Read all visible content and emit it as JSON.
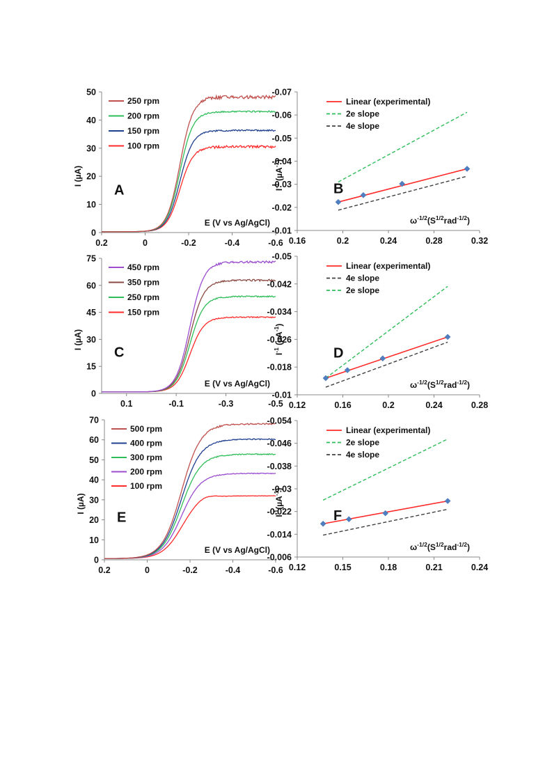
{
  "chart_data": [
    {
      "id": "A",
      "type": "line",
      "panel_label": "A",
      "xlabel": "E (V vs Ag/AgCl)",
      "ylabel": "I (µA)",
      "xlim": [
        0.2,
        -0.6
      ],
      "ylim": [
        0,
        50
      ],
      "x_ticks": [
        "0.2",
        "0",
        "-0.2",
        "-0.4",
        "-0.6"
      ],
      "y_ticks": [
        "0",
        "10",
        "20",
        "30",
        "40",
        "50"
      ],
      "legend_position": "top-left",
      "series": [
        {
          "name": "250 rpm",
          "color": "#c0504d",
          "limiting_current": 48.2,
          "noise": 0.6
        },
        {
          "name": "200 rpm",
          "color": "#2ebd59",
          "limiting_current": 43.0,
          "noise": 0.25
        },
        {
          "name": "150 rpm",
          "color": "#1f3f8f",
          "limiting_current": 36.3,
          "noise": 0.25
        },
        {
          "name": "100 rpm",
          "color": "#ff2a2a",
          "limiting_current": 30.5,
          "noise": 0.45
        }
      ],
      "curve": {
        "start_current": 0.3,
        "midpoint_V": -0.16,
        "width_V": 0.03
      }
    },
    {
      "id": "B",
      "type": "scatter",
      "panel_label": "B",
      "xlabel_main": "ω",
      "xlabel_sup1": "-1/2",
      "xlabel_mid": "(S",
      "xlabel_sup2": "1/2",
      "xlabel_mid2": "rad",
      "xlabel_sup3": "-1/2",
      "xlabel_end": ")",
      "ylabel_main": "I",
      "ylabel_sup1": "-1",
      "ylabel_mid": " (µA",
      "ylabel_sup2": "-1",
      "ylabel_end": ")",
      "xlim": [
        0.16,
        0.32
      ],
      "ylim": [
        -0.01,
        -0.07
      ],
      "x_ticks": [
        "0.16",
        "0.2",
        "0.24",
        "0.28",
        "0.32"
      ],
      "y_ticks": [
        "-0.01",
        "-0.02",
        "-0.03",
        "-0.04",
        "-0.05",
        "-0.06",
        "-0.07"
      ],
      "legend_position": "top-left",
      "points": {
        "x": [
          0.196,
          0.218,
          0.252,
          0.309
        ],
        "y": [
          -0.0223,
          -0.0253,
          -0.0302,
          -0.0367
        ]
      },
      "lines": [
        {
          "name": "Linear (experimental)",
          "color": "#ff2a2a",
          "dash": "solid",
          "x": [
            0.196,
            0.309
          ],
          "y": [
            -0.0223,
            -0.0367
          ]
        },
        {
          "name": "2e slope",
          "color": "#2ebd59",
          "dash": "dashed",
          "x": [
            0.196,
            0.309
          ],
          "y": [
            -0.031,
            -0.0612
          ]
        },
        {
          "name": "4e slope",
          "color": "#404040",
          "dash": "dashed",
          "x": [
            0.196,
            0.309
          ],
          "y": [
            -0.0188,
            -0.0335
          ]
        }
      ]
    },
    {
      "id": "C",
      "type": "line",
      "panel_label": "C",
      "xlabel": "E (V vs Ag/AgCl)",
      "ylabel": "I (µA)",
      "xlim": [
        0.2,
        -0.5
      ],
      "ylim": [
        0,
        75
      ],
      "x_ticks": [
        "0.1",
        "-0.1",
        "-0.3",
        "-0.5"
      ],
      "x_tick_values": [
        0.1,
        -0.1,
        -0.3,
        -0.5
      ],
      "y_ticks": [
        "0",
        "15",
        "30",
        "45",
        "60",
        "75"
      ],
      "legend_position": "top-left",
      "series": [
        {
          "name": "450 rpm",
          "color": "#9b4dd0",
          "limiting_current": 73.0,
          "noise": 0.6
        },
        {
          "name": "350 rpm",
          "color": "#8b4a44",
          "limiting_current": 62.8,
          "noise": 0.5
        },
        {
          "name": "250 rpm",
          "color": "#2ebd59",
          "limiting_current": 53.8,
          "noise": 0.35
        },
        {
          "name": "150 rpm",
          "color": "#ff2a2a",
          "limiting_current": 42.3,
          "noise": 0.3
        }
      ],
      "curve": {
        "start_current": 0.8,
        "midpoint_V": -0.155,
        "width_V": 0.028
      }
    },
    {
      "id": "D",
      "type": "scatter",
      "panel_label": "D",
      "xlabel_main": "ω",
      "xlabel_sup1": "-1/2",
      "xlabel_mid": "(S",
      "xlabel_sup2": "1/2",
      "xlabel_mid2": "rad",
      "xlabel_sup3": "-1/2",
      "xlabel_end": ")",
      "ylabel_main": "I",
      "ylabel_sup1": "-1",
      "ylabel_mid": " (µA",
      "ylabel_sup2": "-1",
      "ylabel_end": ")",
      "xlim": [
        0.12,
        0.28
      ],
      "ylim": [
        -0.01,
        -0.05
      ],
      "x_ticks": [
        "0.12",
        "0.16",
        "0.2",
        "0.24",
        "0.28"
      ],
      "y_ticks": [
        "-0.01",
        "-0.018",
        "-0.026",
        "-0.034",
        "-0.042",
        "-0.05"
      ],
      "legend_position": "top-left",
      "points": {
        "x": [
          0.145,
          0.164,
          0.195,
          0.252
        ],
        "y": [
          -0.0148,
          -0.0171,
          -0.0205,
          -0.0267
        ]
      },
      "lines": [
        {
          "name": "Linear (experimental)",
          "color": "#ff2a2a",
          "dash": "solid",
          "x": [
            0.145,
            0.252
          ],
          "y": [
            -0.0148,
            -0.0267
          ]
        },
        {
          "name": "4e slope",
          "color": "#404040",
          "dash": "dashed",
          "x": [
            0.145,
            0.252
          ],
          "y": [
            -0.0122,
            -0.0252
          ]
        },
        {
          "name": "2e slope",
          "color": "#2ebd59",
          "dash": "dashed",
          "x": [
            0.145,
            0.252
          ],
          "y": [
            -0.0148,
            -0.0413
          ]
        }
      ]
    },
    {
      "id": "E",
      "type": "line",
      "panel_label": "E",
      "xlabel": "E (V vs Ag/AgCl)",
      "ylabel": "I (µA)",
      "xlim": [
        0.2,
        -0.6
      ],
      "ylim": [
        0,
        70
      ],
      "x_ticks": [
        "0.2",
        "0",
        "-0.2",
        "-0.4",
        "-0.6"
      ],
      "y_ticks": [
        "0",
        "10",
        "20",
        "30",
        "40",
        "50",
        "60",
        "70"
      ],
      "legend_position": "top-left",
      "series": [
        {
          "name": "500 rpm",
          "color": "#c0504d",
          "limiting_current": 68.0,
          "noise": 0.35
        },
        {
          "name": "400 rpm",
          "color": "#1f3f8f",
          "limiting_current": 60.3,
          "noise": 0.25
        },
        {
          "name": "300 rpm",
          "color": "#2ebd59",
          "limiting_current": 52.8,
          "noise": 0.25
        },
        {
          "name": "200 rpm",
          "color": "#9b4dd0",
          "limiting_current": 43.2,
          "noise": 0.2
        },
        {
          "name": "100 rpm",
          "color": "#ff2a2a",
          "limiting_current": 32.0,
          "noise": 0.1,
          "peak": 33.5
        }
      ],
      "curve": {
        "start_current": 0.6,
        "midpoint_V": -0.16,
        "width_V": 0.045
      }
    },
    {
      "id": "F",
      "type": "scatter",
      "panel_label": "F",
      "xlabel_main": "ω",
      "xlabel_sup1": "-1/2",
      "xlabel_mid": "(S",
      "xlabel_sup2": "1/2",
      "xlabel_mid2": "rad",
      "xlabel_sup3": "-1/2",
      "xlabel_end": ")",
      "ylabel_main": "I",
      "ylabel_sup1": "-1",
      "ylabel_mid": "(µA",
      "ylabel_sup2": "-1",
      "ylabel_end": ")",
      "xlim": [
        0.12,
        0.24
      ],
      "ylim": [
        -0.006,
        -0.054
      ],
      "x_ticks": [
        "0.12",
        "0.15",
        "0.18",
        "0.21",
        "0.24"
      ],
      "y_ticks": [
        "-0.006",
        "-0.014",
        "-0.022",
        "-0.03",
        "-0.038",
        "-0.046",
        "-0.054"
      ],
      "legend_position": "top-left",
      "points": {
        "x": [
          0.137,
          0.154,
          0.178,
          0.219
        ],
        "y": [
          -0.0177,
          -0.0193,
          -0.0214,
          -0.0257
        ]
      },
      "lines": [
        {
          "name": "Linear (experimental)",
          "color": "#ff2a2a",
          "dash": "solid",
          "x": [
            0.137,
            0.219
          ],
          "y": [
            -0.0177,
            -0.0257
          ]
        },
        {
          "name": "2e slope",
          "color": "#2ebd59",
          "dash": "dashed",
          "x": [
            0.137,
            0.219
          ],
          "y": [
            -0.026,
            -0.0475
          ]
        },
        {
          "name": "4e slope",
          "color": "#404040",
          "dash": "dashed",
          "x": [
            0.137,
            0.219
          ],
          "y": [
            -0.0137,
            -0.0228
          ]
        }
      ]
    }
  ]
}
